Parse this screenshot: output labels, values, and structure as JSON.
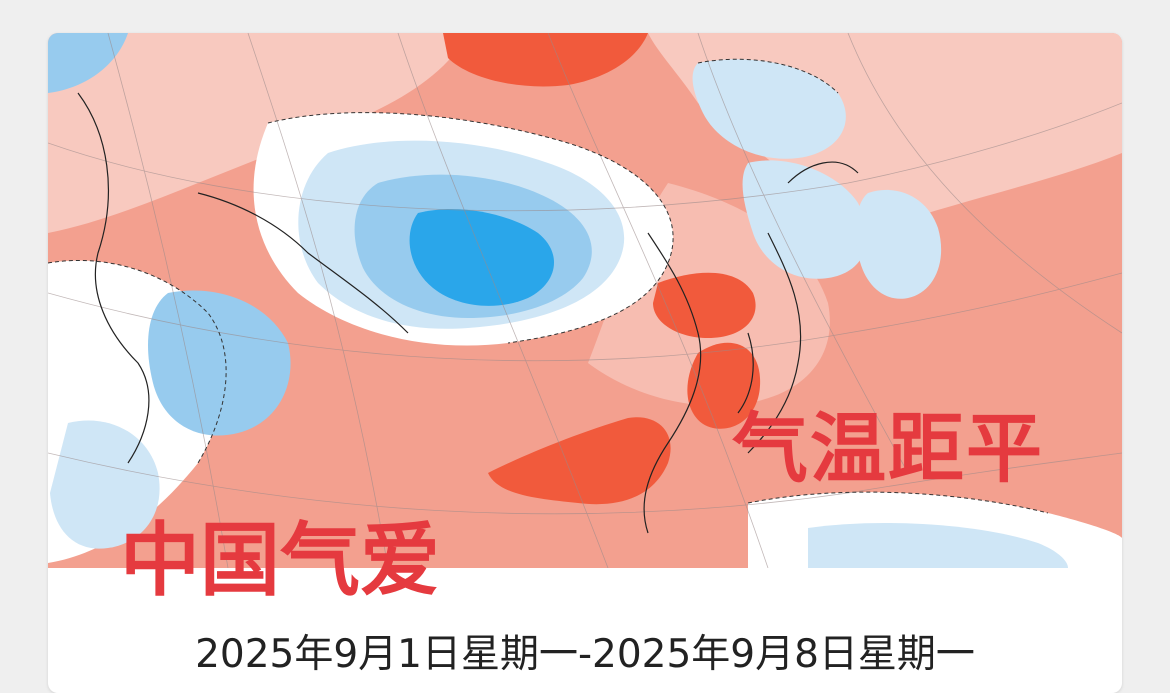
{
  "map": {
    "overlay_title": "气温距平",
    "brand": "中国气爱",
    "date_range": "2025年9月1日星期一-2025年9月8日星期一",
    "colors": {
      "strong_warm": "#f15a3c",
      "warm": "#f3a08f",
      "mild_warm": "#f8c9bf",
      "neutral": "#ffffff",
      "mild_cool": "#cfe6f6",
      "cool": "#97cbee",
      "strong_cool": "#2aa6ea",
      "overlay_text": "#e53a3f"
    }
  }
}
